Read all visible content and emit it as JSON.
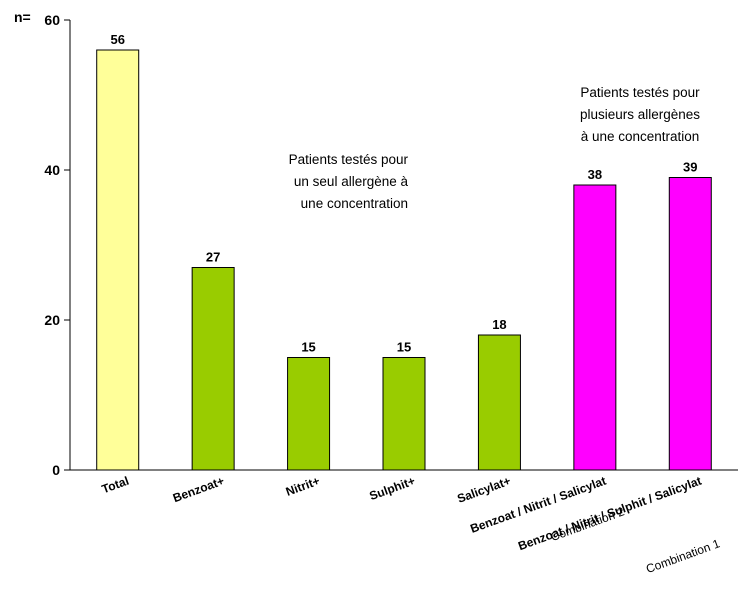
{
  "chart_data": {
    "type": "bar",
    "title": "",
    "xlabel": "",
    "ylabel": "n=",
    "ylim": [
      0,
      60
    ],
    "yticks": [
      0,
      20,
      40,
      60
    ],
    "grid": false,
    "categories": [
      "Total",
      "Benzoat+",
      "Nitrit+",
      "Sulphit+",
      "Salicylat+",
      "Benzoat / Nitrit / Salicylat",
      "Benzoat / Nitrit / Sulphit / Salicylat"
    ],
    "sub_labels": [
      "",
      "",
      "",
      "",
      "",
      "Combination 2",
      "Combination 1"
    ],
    "values": [
      56,
      27,
      15,
      15,
      18,
      38,
      39
    ],
    "colors": [
      "#ffff99",
      "#99cc00",
      "#99cc00",
      "#99cc00",
      "#99cc00",
      "#ff00ff",
      "#ff00ff"
    ],
    "annotations": [
      {
        "lines": [
          "Patients testés pour",
          "un seul allergène à",
          "une concentration"
        ]
      },
      {
        "lines": [
          "Patients testés pour",
          "plusieurs allergènes",
          "à une concentration"
        ]
      }
    ]
  }
}
